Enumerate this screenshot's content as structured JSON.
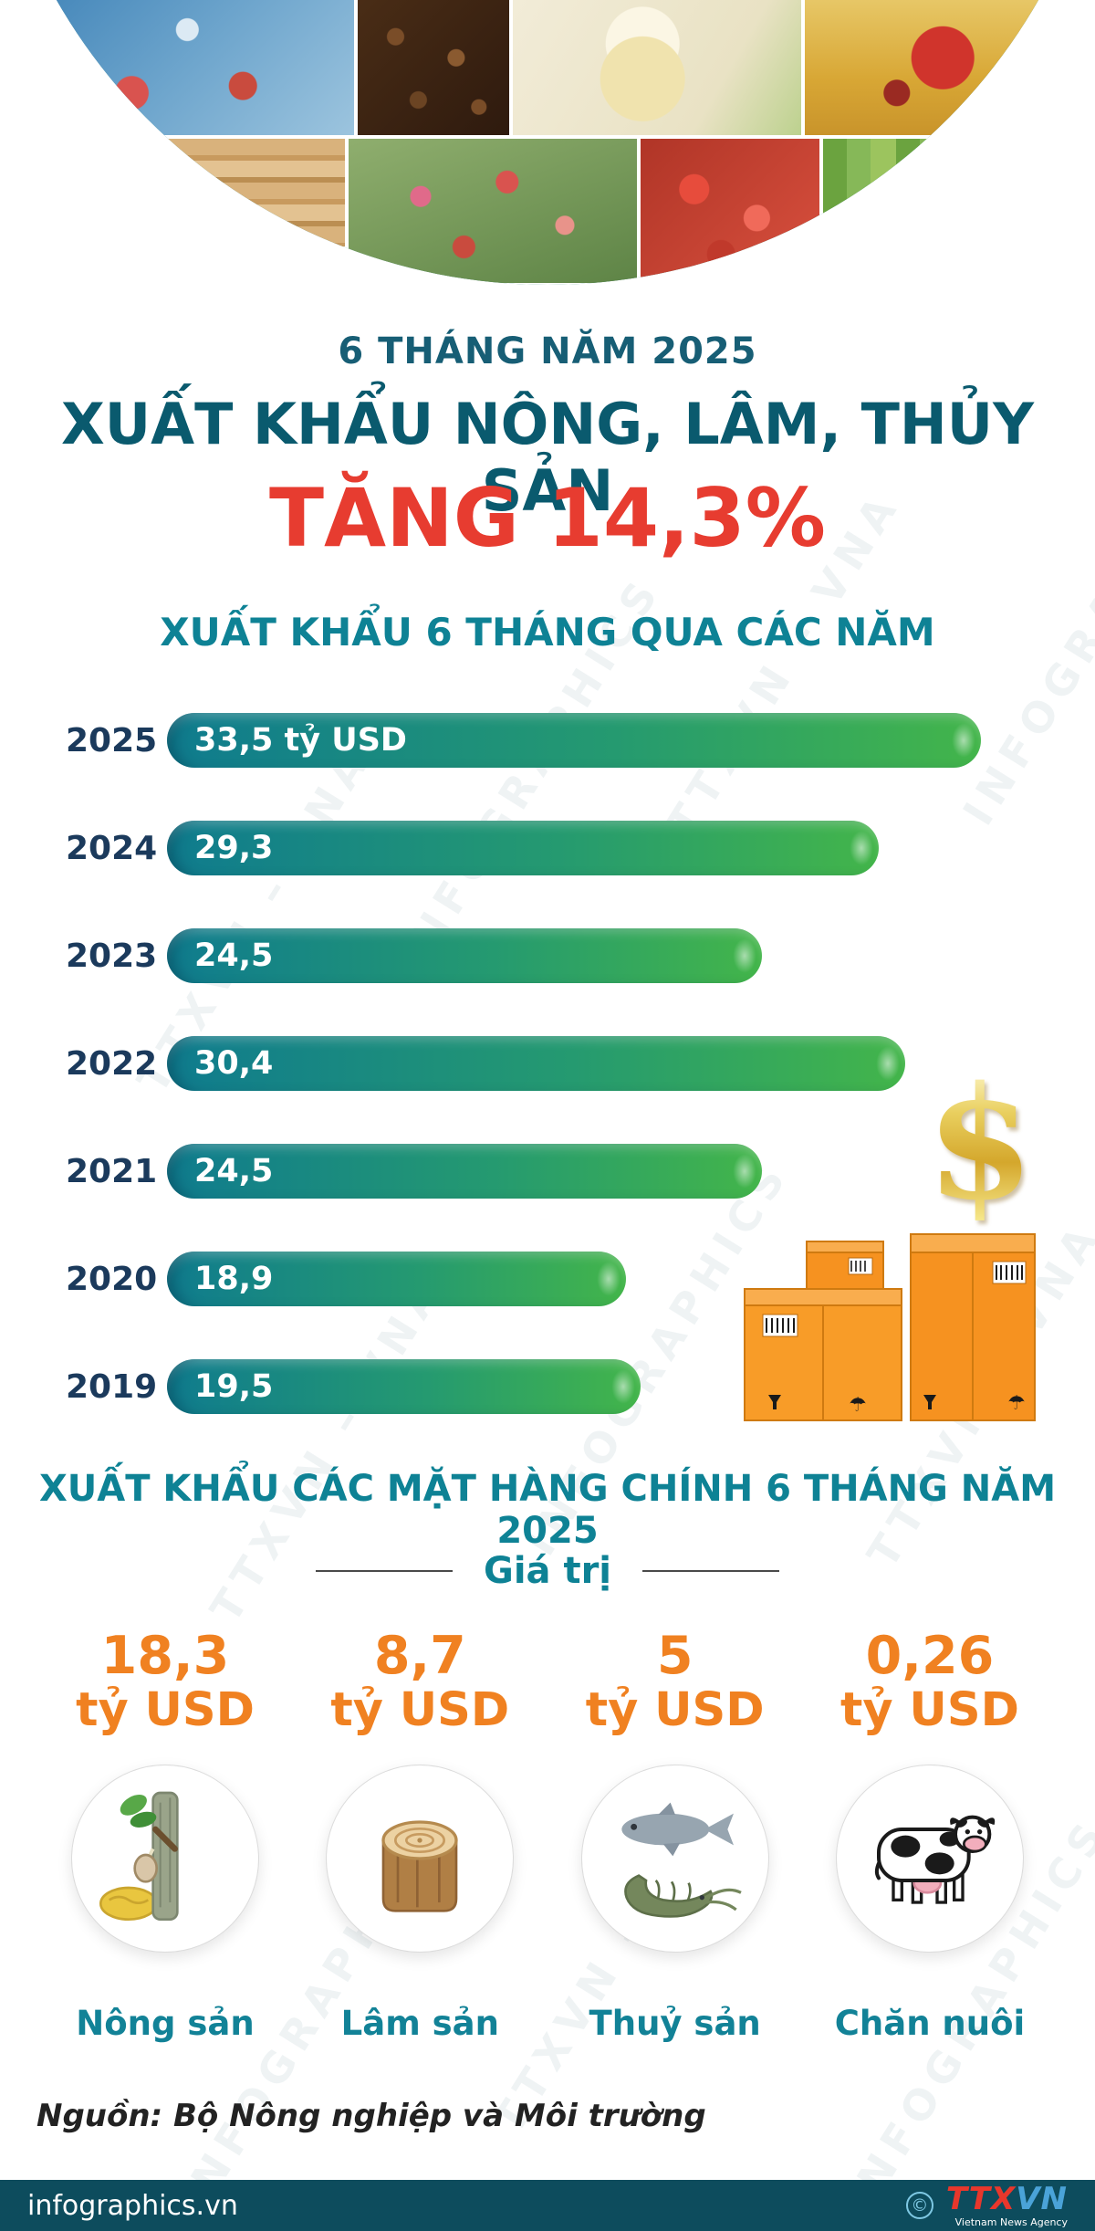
{
  "header": {
    "kicker": "6 THÁNG NĂM 2025",
    "title": "XUẤT KHẨU NÔNG, LÂM, THỦY SẢN",
    "highlight": "TĂNG 14,3%"
  },
  "chart_data": {
    "type": "bar",
    "orientation": "horizontal",
    "title": "XUẤT KHẨU 6 THÁNG QUA CÁC NĂM",
    "categories": [
      "2025",
      "2024",
      "2023",
      "2022",
      "2021",
      "2020",
      "2019"
    ],
    "values": [
      33.5,
      29.3,
      24.5,
      30.4,
      24.5,
      18.9,
      19.5
    ],
    "value_labels": [
      "33,5 tỷ USD",
      "29,3",
      "24,5",
      "30,4",
      "24,5",
      "18,9",
      "19,5"
    ],
    "unit": "tỷ USD",
    "xlim": [
      0,
      33.5
    ],
    "bar_gradient": [
      "#0f7b8e",
      "#43b54a"
    ],
    "grid": false,
    "legend": false
  },
  "commodities": {
    "section_title": "XUẤT KHẨU CÁC MẶT HÀNG CHÍNH 6 THÁNG NĂM 2025",
    "subtitle": "Giá trị",
    "items": [
      {
        "value": "18,3",
        "unit": "tỷ USD",
        "label": "Nông sản",
        "icon": "rubber-tree-icon"
      },
      {
        "value": "8,7",
        "unit": "tỷ USD",
        "label": "Lâm sản",
        "icon": "wood-log-icon"
      },
      {
        "value": "5",
        "unit": "tỷ USD",
        "label": "Thuỷ sản",
        "icon": "fish-shrimp-icon"
      },
      {
        "value": "0,26",
        "unit": "tỷ USD",
        "label": "Chăn nuôi",
        "icon": "cow-icon"
      }
    ]
  },
  "decor": {
    "dollar_symbol": "$"
  },
  "source": {
    "text": "Nguồn: Bộ Nông nghiệp và Môi trường"
  },
  "footer": {
    "site": "infographics.vn",
    "copyright_symbol": "©",
    "logo_part1": "TTX",
    "logo_part2": "VN",
    "logo_sub": "Vietnam News Agency"
  },
  "watermarks": [
    "TTXVN – VNA",
    "INFOGRAPHICS"
  ],
  "colors": {
    "heading_teal": "#0a5a6e",
    "section_teal": "#0e8295",
    "accent_red": "#e73c30",
    "value_orange": "#f08121",
    "year_navy": "#1b3a5c",
    "footer_bg": "#0d4c5d",
    "bar_teal": "#0f7b8e",
    "bar_green": "#43b54a"
  }
}
